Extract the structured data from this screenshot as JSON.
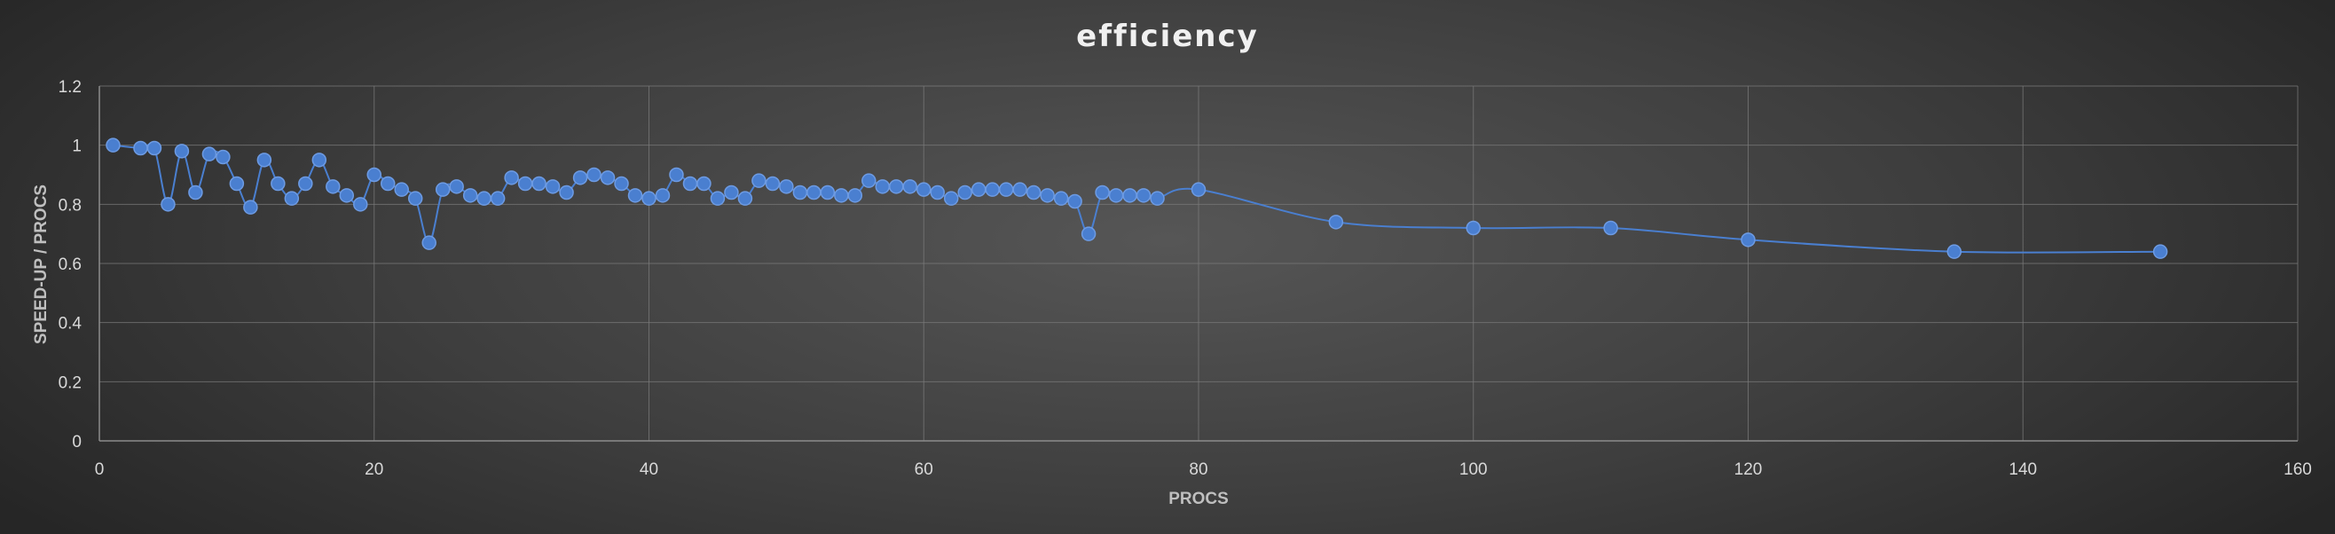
{
  "chart_data": {
    "type": "scatter",
    "title": "efficiency",
    "xlabel": "PROCS",
    "ylabel": "SPEED-UP / PROCS",
    "xlim": [
      0,
      160
    ],
    "ylim": [
      0,
      1.2
    ],
    "xticks": [
      0,
      20,
      40,
      60,
      80,
      100,
      120,
      140,
      160
    ],
    "yticks": [
      0,
      0.2,
      0.4,
      0.6,
      0.8,
      1,
      1.2
    ],
    "xtick_labels": [
      "0",
      "20",
      "40",
      "60",
      "80",
      "100",
      "120",
      "140",
      "160"
    ],
    "ytick_labels": [
      "0",
      "0.2",
      "0.4",
      "0.6",
      "0.8",
      "1",
      "1.2"
    ],
    "grid": true,
    "legend": "none",
    "smooth_lines": true,
    "colors": {
      "series": "#4a7fd0"
    },
    "series": [
      {
        "x": [
          1,
          3,
          4,
          5,
          6,
          7,
          8,
          9,
          10,
          11,
          12,
          13,
          14,
          15,
          16,
          17,
          18,
          19,
          20,
          21,
          22,
          23,
          24,
          25,
          26,
          27,
          28,
          29,
          30,
          31,
          32,
          33,
          34,
          35,
          36,
          37,
          38,
          39,
          40,
          41,
          42,
          43,
          44,
          45,
          46,
          47,
          48,
          49,
          50,
          51,
          52,
          53,
          54,
          55,
          56,
          57,
          58,
          59,
          60,
          61,
          62,
          63,
          64,
          65,
          66,
          67,
          68,
          69,
          70,
          71,
          72,
          73,
          74,
          75,
          76,
          77,
          80,
          90,
          100,
          110,
          120,
          135,
          150
        ],
        "y": [
          1.0,
          0.99,
          0.99,
          0.8,
          0.98,
          0.84,
          0.97,
          0.96,
          0.87,
          0.79,
          0.95,
          0.87,
          0.82,
          0.87,
          0.95,
          0.86,
          0.83,
          0.8,
          0.9,
          0.87,
          0.85,
          0.82,
          0.67,
          0.85,
          0.86,
          0.83,
          0.82,
          0.82,
          0.89,
          0.87,
          0.87,
          0.86,
          0.84,
          0.89,
          0.9,
          0.89,
          0.87,
          0.83,
          0.82,
          0.83,
          0.9,
          0.87,
          0.87,
          0.82,
          0.84,
          0.82,
          0.88,
          0.87,
          0.86,
          0.84,
          0.84,
          0.84,
          0.83,
          0.83,
          0.88,
          0.86,
          0.86,
          0.86,
          0.85,
          0.84,
          0.82,
          0.84,
          0.85,
          0.85,
          0.85,
          0.85,
          0.84,
          0.83,
          0.82,
          0.81,
          0.7,
          0.84,
          0.83,
          0.83,
          0.83,
          0.82,
          0.85,
          0.74,
          0.72,
          0.72,
          0.68,
          0.64,
          0.64
        ]
      }
    ]
  }
}
